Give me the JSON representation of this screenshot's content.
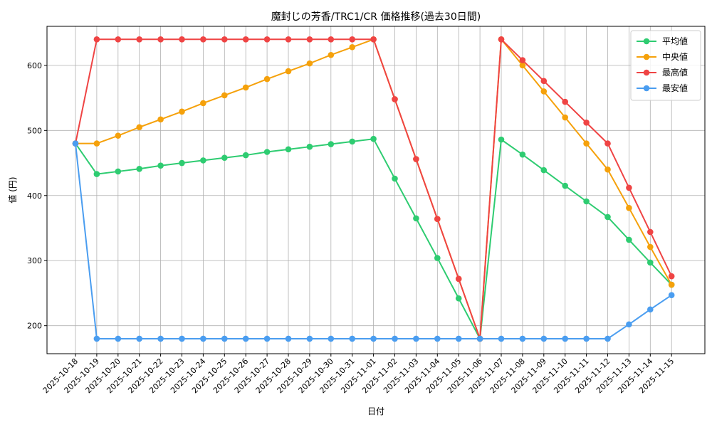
{
  "chart_data": {
    "type": "line",
    "title": "魔封じの芳香/TRC1/CR 価格推移(過去30日間)",
    "xlabel": "日付",
    "ylabel": "値 (円)",
    "x": [
      "2025-10-18",
      "2025-10-19",
      "2025-10-20",
      "2025-10-21",
      "2025-10-22",
      "2025-10-23",
      "2025-10-24",
      "2025-10-25",
      "2025-10-26",
      "2025-10-27",
      "2025-10-28",
      "2025-10-29",
      "2025-10-30",
      "2025-10-31",
      "2025-11-01",
      "2025-11-02",
      "2025-11-03",
      "2025-11-04",
      "2025-11-05",
      "2025-11-06",
      "2025-11-07",
      "2025-11-08",
      "2025-11-09",
      "2025-11-10",
      "2025-11-11",
      "2025-11-12",
      "2025-11-13",
      "2025-11-14",
      "2025-11-15"
    ],
    "yticks": [
      200,
      300,
      400,
      500,
      600
    ],
    "ylim": [
      157,
      660
    ],
    "grid": true,
    "legend_position": "top-right",
    "series": [
      {
        "name": "平均値",
        "color": "#2ecc71",
        "values": [
          480,
          433,
          437,
          441,
          446,
          450,
          454,
          458,
          462,
          467,
          471,
          475,
          479,
          483,
          487,
          426,
          365,
          304,
          242,
          180,
          486,
          463,
          439,
          415,
          391,
          367,
          332,
          297,
          263
        ]
      },
      {
        "name": "中央値",
        "color": "#f5a10b",
        "values": [
          480,
          480,
          492,
          505,
          517,
          529,
          542,
          554,
          566,
          579,
          591,
          603,
          616,
          628,
          640,
          548,
          456,
          364,
          272,
          180,
          640,
          600,
          560,
          520,
          480,
          440,
          381,
          321,
          263
        ]
      },
      {
        "name": "最高値",
        "color": "#ef4444",
        "values": [
          480,
          640,
          640,
          640,
          640,
          640,
          640,
          640,
          640,
          640,
          640,
          640,
          640,
          640,
          640,
          548,
          456,
          364,
          272,
          180,
          640,
          608,
          576,
          544,
          512,
          480,
          412,
          344,
          276
        ]
      },
      {
        "name": "最安値",
        "color": "#4a9df0",
        "values": [
          480,
          180,
          180,
          180,
          180,
          180,
          180,
          180,
          180,
          180,
          180,
          180,
          180,
          180,
          180,
          180,
          180,
          180,
          180,
          180,
          180,
          180,
          180,
          180,
          180,
          180,
          202,
          225,
          247
        ]
      }
    ]
  }
}
